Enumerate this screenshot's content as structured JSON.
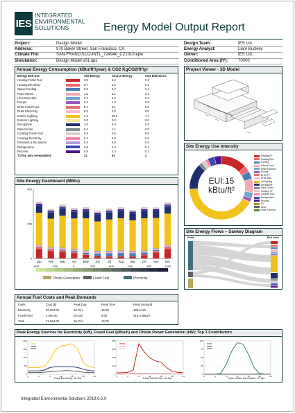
{
  "header": {
    "logo_abbr": "IES",
    "logo_line1": "INTEGRATED",
    "logo_line2": "ENVIRONMENTAL",
    "logo_line3": "SOLUTIONS",
    "title": "Energy Model Output Report"
  },
  "project_info": {
    "left": [
      {
        "label": "Project:",
        "value": "Design Model"
      },
      {
        "label": "Address:",
        "value": "970 Baker Street, San Francisco, CA"
      },
      {
        "label": "Climate File:",
        "value": "SAN-FRANCISCO-INTL_724940_CZ2010.epw"
      },
      {
        "label": "Simulation:",
        "value": "Design Model v01.aps"
      }
    ],
    "right": [
      {
        "label": "Design Team:",
        "value": "IES Ltd."
      },
      {
        "label": "Energy Analyst:",
        "value": "Liam Buckley"
      },
      {
        "label": "Owner:",
        "value": "IES Ltd."
      },
      {
        "label": "Conditioned Area (ft²):",
        "value": "70000"
      }
    ]
  },
  "annual_table": {
    "title": "Annual Energy Consumption (kBtu/ft²/year) & CO2 KgCO2/ft²/yr",
    "headers": [
      "Energy End Use",
      "Site Energy",
      "Source Energy",
      "CO2 Emissions"
    ],
    "rows": [
      {
        "name": "Heating Fossil Fuel",
        "color": "#c62828",
        "site": "3.0",
        "source": "3.2",
        "co2": "0.2"
      },
      {
        "name": "Heating Electricity",
        "color": "#ef6c6c",
        "site": "0.7",
        "source": "2.2",
        "co2": "0.1"
      },
      {
        "name": "Space Cooling",
        "color": "#4a7fb5",
        "site": "0.9",
        "source": "2.7",
        "co2": "0.1"
      },
      {
        "name": "Fans Interior",
        "color": "#f4a9b8",
        "site": "1.6",
        "source": "5.1",
        "co2": "0.2"
      },
      {
        "name": "Heat Rejection",
        "color": "#6fa8c9",
        "site": "0.7",
        "source": "2.2",
        "co2": "0.1"
      },
      {
        "name": "Pumps",
        "color": "#9b59b6",
        "site": "0.4",
        "source": "1.3",
        "co2": "0.0"
      },
      {
        "name": "DHW Fossil Fuel",
        "color": "#e57373",
        "site": "0.1",
        "source": "0.1",
        "co2": "0.0"
      },
      {
        "name": "DHW Electricity",
        "color": "#f8bbd0",
        "site": "0.0",
        "source": "0.0",
        "co2": "0.0"
      },
      {
        "name": "Interior Lighting",
        "color": "#f2c21c",
        "site": "9.4",
        "source": "29.5",
        "co2": "1.7"
      },
      {
        "name": "Exterior Lighting",
        "color": "#f9e79f",
        "site": "0.0",
        "source": "0.0",
        "co2": "0.0"
      },
      {
        "name": "Receptacle",
        "color": "#1f2f6b",
        "site": "3.0",
        "source": "9.3",
        "co2": "0.3"
      },
      {
        "name": "Data Center",
        "color": "#7f8c8d",
        "site": "0.4",
        "source": "1.1",
        "co2": "0.0"
      },
      {
        "name": "Cooking Fossil Fuel",
        "color": "#d7ccc8",
        "site": "0.5",
        "source": "0.6",
        "co2": "0.0"
      },
      {
        "name": "Cooking Electricity",
        "color": "#ff80ab",
        "site": "0.3",
        "source": "0.8",
        "co2": "0.0"
      },
      {
        "name": "Elevators & Escalators",
        "color": "#b39ddb",
        "site": "0.0",
        "source": "0.0",
        "co2": "0.0"
      },
      {
        "name": "Refrigeration",
        "color": "#3949ab",
        "site": "0.8",
        "source": "2.4",
        "co2": "0.1"
      },
      {
        "name": "Process",
        "color": "#4a148c",
        "site": "0.8",
        "source": "2.4",
        "co2": "0.1"
      }
    ],
    "total": {
      "name": "TOTAL (w/o renewables)",
      "site": "22",
      "source": "63",
      "co2": "2"
    }
  },
  "project_viewer": {
    "title": "Project Viewer - 3D Model"
  },
  "eui": {
    "title": "Site Energy Use Intensity",
    "label_line1": "EUI:15",
    "label_line2": "kBtu/ft²",
    "legend": [
      {
        "name": "Heating FF",
        "color": "#c62828"
      },
      {
        "name": "Heating Elec",
        "color": "#ef6c6c"
      },
      {
        "name": "Cooling",
        "color": "#4a7fb5"
      },
      {
        "name": "Interior Fans",
        "color": "#f4a9b8"
      },
      {
        "name": "Heat Rejection",
        "color": "#6fa8c9"
      },
      {
        "name": "Pumps",
        "color": "#9b59b6"
      },
      {
        "name": "DHW FF",
        "color": "#e57373"
      },
      {
        "name": "DHW Elec",
        "color": "#f8bbd0"
      },
      {
        "name": "Int Lighting",
        "color": "#f2c21c"
      },
      {
        "name": "Receptacle",
        "color": "#1f2f6b"
      },
      {
        "name": "Data Center",
        "color": "#7f8c8d"
      },
      {
        "name": "Cooking FF",
        "color": "#d7ccc8"
      },
      {
        "name": "Cooking Elec",
        "color": "#ff80ab"
      },
      {
        "name": "Refrigeration",
        "color": "#3949ab"
      },
      {
        "name": "Process",
        "color": "#4a148c"
      },
      {
        "name": "PV",
        "color": "#9e9d24"
      },
      {
        "name": "Wind",
        "color": "#616161"
      },
      {
        "name": "Solar Thermal",
        "color": "#558b2f"
      }
    ]
  },
  "dashboard": {
    "title": "Site Energy Dashboard (MBtu)",
    "legend": [
      "Onsite Generation",
      "Fossil Fuel",
      "Electricity"
    ]
  },
  "sankey": {
    "title": "Site Energy Flows – Sankey Diagram",
    "left_label": "Fuels",
    "right_label": "End Uses"
  },
  "fuel_costs": {
    "title": "Annual Fuel Costs and Peak Demands",
    "headers": [
      "Fuels",
      "Cost ($)",
      "Peak Day",
      "Peak Time",
      "Peak Demand"
    ],
    "rows": [
      {
        "fuel": "Electricity",
        "cost": "69,064.00",
        "day": "16-Oct",
        "time": "15:00",
        "demand": "183.6 kW"
      },
      {
        "fuel": "Fossil Fuel",
        "cost": "2,600.00",
        "day": "04-Jan",
        "time": "8:00",
        "demand": "410.3 kBtu/h"
      },
      {
        "fuel": "Total",
        "cost": "71,664.00",
        "day": "16-Oct",
        "time": "15:00",
        "demand": ""
      }
    ]
  },
  "peaks": {
    "title": "Peak Energy Sources for Electricity (kW), Fossil Fuel (kBtu/h) and Onsite Power Generation (kW): Top 3 Contributors",
    "cap_elec": "Peak Electricity: 16 Oct",
    "cap_fuel": "Peak Fossil Fuel: 04 Jan",
    "cap_gen": "Peak Onsite Generation: 07 Apr"
  },
  "footer": {
    "text": "Integrated Environmental Solutions 2019.0.0.0"
  },
  "chart_data": [
    {
      "type": "bar",
      "name": "Site Energy Dashboard (MBtu)",
      "categories": [
        "Jan",
        "Feb",
        "Mar",
        "Apr",
        "May",
        "Jun",
        "Jul",
        "Aug",
        "Sep",
        "Oct",
        "Nov",
        "Dec"
      ],
      "ylim": [
        -400,
        400
      ],
      "series": [
        {
          "name": "Heating Fossil Fuel",
          "color": "#c62828",
          "values": [
            55,
            42,
            38,
            30,
            20,
            12,
            10,
            10,
            10,
            18,
            35,
            55
          ]
        },
        {
          "name": "Heating Electricity",
          "color": "#ef6c6c",
          "values": [
            10,
            8,
            7,
            5,
            3,
            2,
            2,
            2,
            2,
            4,
            8,
            10
          ]
        },
        {
          "name": "Space Cooling",
          "color": "#4a7fb5",
          "values": [
            3,
            4,
            5,
            8,
            10,
            15,
            18,
            20,
            18,
            12,
            5,
            3
          ]
        },
        {
          "name": "Fans Interior",
          "color": "#f4a9b8",
          "values": [
            8,
            8,
            9,
            9,
            10,
            10,
            10,
            10,
            10,
            9,
            8,
            8
          ]
        },
        {
          "name": "Heat Rejection",
          "color": "#6fa8c9",
          "values": [
            3,
            3,
            3,
            4,
            4,
            5,
            5,
            5,
            5,
            4,
            3,
            3
          ]
        },
        {
          "name": "Interior Lighting",
          "color": "#f2c21c",
          "values": [
            185,
            165,
            185,
            175,
            185,
            170,
            180,
            185,
            175,
            185,
            175,
            180
          ]
        },
        {
          "name": "Receptacle",
          "color": "#1f2f6b",
          "values": [
            40,
            35,
            40,
            38,
            40,
            38,
            40,
            40,
            38,
            40,
            38,
            40
          ]
        },
        {
          "name": "Refrigeration",
          "color": "#3949ab",
          "values": [
            6,
            6,
            6,
            6,
            6,
            6,
            6,
            6,
            6,
            6,
            6,
            6
          ]
        },
        {
          "name": "Process",
          "color": "#4a148c",
          "values": [
            6,
            6,
            6,
            6,
            6,
            6,
            6,
            6,
            6,
            6,
            6,
            6
          ]
        },
        {
          "name": "Cooking",
          "color": "#d7ccc8",
          "values": [
            12,
            10,
            12,
            11,
            12,
            11,
            12,
            12,
            11,
            12,
            11,
            12
          ]
        }
      ],
      "colorbar": {
        "min": -400,
        "max": 1000,
        "ticks": [
          -400,
          -200,
          0,
          200,
          400,
          600,
          800,
          1000
        ]
      }
    },
    {
      "type": "pie",
      "name": "Site Energy Use Intensity",
      "labels": [
        "Heating FF",
        "Heating Elec",
        "Cooling",
        "Interior Fans",
        "Heat Rejection",
        "Pumps",
        "DHW FF",
        "Int Lighting",
        "Receptacle",
        "Data Center",
        "Cooking FF",
        "Cooking Elec",
        "Refrigeration",
        "Process"
      ],
      "values": [
        3.0,
        0.7,
        0.9,
        1.6,
        0.7,
        0.4,
        0.1,
        9.4,
        3.0,
        0.4,
        0.5,
        0.3,
        0.8,
        0.8
      ]
    },
    {
      "type": "line",
      "name": "Peak Electricity",
      "x": [
        0,
        2,
        4,
        6,
        8,
        10,
        12,
        14,
        16,
        18,
        20,
        22,
        24
      ],
      "series": [
        {
          "name": "",
          "color": "#f2c21c",
          "values": [
            40,
            40,
            40,
            45,
            90,
            150,
            170,
            175,
            183,
            150,
            70,
            45,
            40
          ]
        },
        {
          "name": "",
          "color": "#1f2f6b",
          "values": [
            20,
            20,
            20,
            25,
            40,
            45,
            45,
            45,
            45,
            40,
            30,
            22,
            20
          ]
        },
        {
          "name": "",
          "color": "#555555",
          "values": [
            10,
            10,
            10,
            12,
            15,
            18,
            20,
            22,
            20,
            16,
            12,
            10,
            10
          ]
        }
      ]
    },
    {
      "type": "line",
      "name": "Peak Fossil Fuel",
      "x": [
        0,
        2,
        4,
        6,
        8,
        10,
        12,
        14,
        16,
        18,
        20,
        22,
        24
      ],
      "series": [
        {
          "name": "",
          "color": "#c62828",
          "values": [
            20,
            20,
            25,
            60,
            410,
            300,
            220,
            180,
            160,
            90,
            40,
            25,
            20
          ]
        },
        {
          "name": "",
          "color": "#e57373",
          "values": [
            5,
            5,
            5,
            8,
            12,
            12,
            10,
            10,
            9,
            8,
            6,
            5,
            5
          ]
        },
        {
          "name": "",
          "color": "#d7ccc8",
          "values": [
            0,
            0,
            0,
            0,
            4,
            6,
            6,
            6,
            4,
            2,
            0,
            0,
            0
          ]
        }
      ]
    },
    {
      "type": "line",
      "name": "Peak Onsite Generation",
      "x": [
        0,
        2,
        4,
        6,
        8,
        10,
        12,
        14,
        16,
        18,
        20,
        22,
        24
      ],
      "series": [
        {
          "name": "",
          "color": "#2e7d6b",
          "values": [
            0,
            0,
            0,
            2,
            30,
            70,
            95,
            90,
            60,
            20,
            2,
            0,
            0
          ]
        },
        {
          "name": "",
          "color": "#1f2f6b",
          "values": [
            0,
            0,
            0,
            0,
            0,
            0,
            0,
            0,
            0,
            0,
            0,
            0,
            0
          ]
        },
        {
          "name": "",
          "color": "#555555",
          "values": [
            0,
            0,
            0,
            0,
            0,
            0,
            0,
            0,
            0,
            0,
            0,
            0,
            0
          ]
        }
      ]
    }
  ]
}
